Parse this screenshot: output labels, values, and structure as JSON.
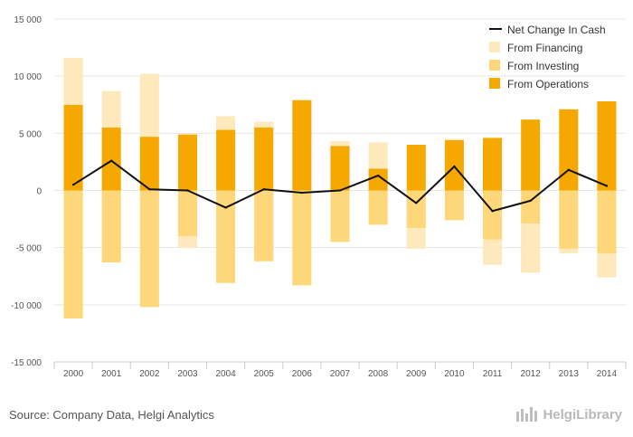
{
  "chart_data": {
    "type": "bar",
    "stacked": true,
    "categories": [
      "2000",
      "2001",
      "2002",
      "2003",
      "2004",
      "2005",
      "2006",
      "2007",
      "2008",
      "2009",
      "2010",
      "2011",
      "2012",
      "2013",
      "2014"
    ],
    "ylim": [
      -15000,
      15000
    ],
    "yticks": [
      -15000,
      -10000,
      -5000,
      0,
      5000,
      10000,
      15000
    ],
    "ytick_labels": [
      "-15 000",
      "-10 000",
      "-5 000",
      "0",
      "5 000",
      "10 000",
      "15 000"
    ],
    "grid": true,
    "legend_position": "top-right",
    "series": [
      {
        "name": "From Operations",
        "kind": "bar",
        "color": "#f5a800",
        "values": [
          7500,
          5500,
          4700,
          4900,
          5300,
          5500,
          7900,
          3900,
          1900,
          4000,
          4400,
          4600,
          6200,
          7100,
          7800
        ]
      },
      {
        "name": "From Investing",
        "kind": "bar",
        "color": "#fdd77a",
        "values": [
          -11200,
          -6300,
          -10200,
          -4000,
          -8100,
          -6200,
          -8300,
          -4500,
          -3000,
          -3300,
          -2600,
          -4300,
          -2900,
          -5100,
          -5500
        ]
      },
      {
        "name": "From Financing",
        "kind": "bar",
        "color": "#fee9bd",
        "values": [
          4100,
          3200,
          5500,
          -1000,
          1200,
          500,
          0,
          400,
          2300,
          -1800,
          100,
          -2200,
          -4300,
          -400,
          -2100
        ]
      },
      {
        "name": "Net Change In Cash",
        "kind": "line",
        "color": "#111111",
        "values": [
          500,
          2600,
          100,
          0,
          -1500,
          100,
          -200,
          0,
          1300,
          -1100,
          2100,
          -1800,
          -900,
          1800,
          400
        ]
      }
    ],
    "legend_order": [
      "Net Change In Cash",
      "From Financing",
      "From Investing",
      "From Operations"
    ]
  },
  "footer": {
    "source": "Source: Company Data, Helgi Analytics",
    "brand": "HelgiLibrary"
  },
  "colors": {
    "grid": "#e6e6e6",
    "axis_text": "#555555"
  }
}
